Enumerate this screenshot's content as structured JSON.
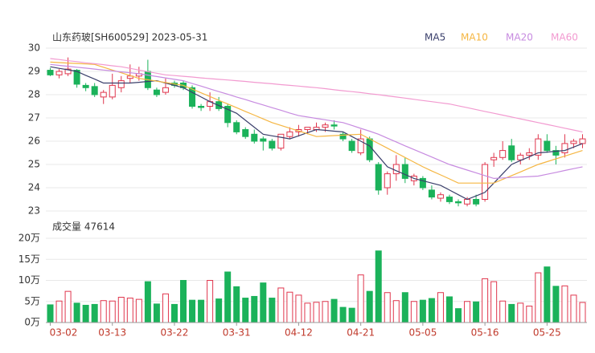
{
  "chart_data": [
    {
      "type": "candlestick",
      "title": "山东药玻[SH600529] 2023-05-31",
      "up_color": "#e0364d",
      "down_color": "#1bb25a",
      "ylim": [
        23,
        30
      ],
      "yticks": [
        23,
        24,
        25,
        26,
        27,
        28,
        29,
        30
      ],
      "grid": true,
      "open": [
        29.05,
        28.85,
        28.9,
        29.05,
        28.4,
        28.35,
        27.9,
        27.9,
        28.3,
        28.7,
        28.8,
        29.0,
        28.2,
        28.1,
        28.5,
        28.5,
        28.3,
        27.5,
        27.5,
        27.7,
        27.5,
        26.8,
        26.5,
        26.3,
        26.1,
        26.0,
        25.7,
        26.2,
        26.4,
        26.5,
        26.5,
        26.6,
        26.7,
        26.3,
        26.0,
        25.5,
        26.1,
        25.0,
        24.0,
        24.6,
        25.0,
        24.3,
        24.4,
        23.9,
        23.55,
        23.6,
        23.4,
        23.3,
        23.5,
        23.5,
        25.2,
        25.3,
        25.8,
        25.2,
        25.4,
        25.4,
        26.0,
        25.6,
        25.5,
        25.9,
        25.9
      ],
      "high": [
        29.15,
        29.1,
        29.6,
        29.1,
        28.5,
        28.5,
        28.2,
        28.9,
        28.8,
        29.3,
        29.2,
        29.5,
        28.3,
        28.7,
        28.6,
        28.6,
        28.4,
        27.6,
        28.1,
        27.9,
        27.6,
        26.9,
        26.6,
        26.5,
        26.2,
        26.1,
        26.3,
        26.6,
        26.7,
        26.6,
        26.8,
        26.8,
        26.9,
        26.4,
        26.1,
        26.5,
        26.2,
        25.1,
        24.7,
        25.4,
        25.3,
        24.6,
        24.5,
        24.1,
        23.8,
        23.7,
        23.5,
        23.6,
        23.7,
        25.1,
        25.5,
        26.0,
        26.1,
        25.5,
        25.7,
        26.3,
        26.3,
        25.8,
        26.3,
        26.1,
        26.3
      ],
      "low": [
        28.8,
        28.7,
        28.8,
        28.3,
        28.15,
        27.9,
        27.6,
        27.8,
        28.1,
        28.5,
        28.6,
        28.2,
        27.9,
        28.0,
        28.3,
        28.2,
        27.4,
        27.3,
        27.3,
        27.3,
        26.6,
        26.3,
        26.1,
        25.9,
        25.6,
        25.6,
        25.6,
        26.1,
        26.2,
        26.3,
        26.4,
        26.4,
        26.5,
        26.0,
        25.5,
        25.4,
        25.1,
        23.7,
        23.7,
        24.3,
        24.2,
        24.1,
        23.9,
        23.5,
        23.4,
        23.3,
        23.2,
        23.2,
        23.2,
        23.4,
        24.9,
        25.2,
        25.1,
        25.0,
        25.2,
        25.2,
        25.5,
        25.0,
        25.3,
        25.7,
        25.7
      ],
      "close": [
        28.85,
        29.0,
        29.1,
        28.45,
        28.3,
        28.0,
        28.1,
        28.4,
        28.6,
        28.8,
        28.9,
        28.3,
        28.0,
        28.3,
        28.4,
        28.3,
        27.5,
        27.45,
        27.7,
        27.4,
        26.8,
        26.4,
        26.2,
        26.0,
        26.0,
        25.7,
        26.3,
        26.4,
        26.5,
        26.6,
        26.6,
        26.7,
        26.65,
        26.1,
        25.6,
        26.1,
        25.2,
        23.9,
        24.6,
        25.0,
        24.4,
        24.5,
        24.0,
        23.6,
        23.7,
        23.4,
        23.35,
        23.5,
        23.3,
        25.0,
        25.3,
        25.6,
        25.2,
        25.4,
        25.5,
        26.1,
        25.6,
        25.4,
        25.9,
        26.0,
        26.1
      ],
      "series": [
        {
          "name": "MA5",
          "color": "#3a3f6b",
          "values": [
            29.2,
            29.13,
            29.07,
            29.0,
            28.83,
            28.67,
            28.5,
            28.5,
            28.5,
            28.5,
            28.53,
            28.57,
            28.6,
            28.5,
            28.4,
            28.3,
            28.1,
            27.9,
            27.7,
            27.53,
            27.37,
            27.2,
            26.9,
            26.6,
            26.3,
            26.23,
            26.17,
            26.1,
            26.23,
            26.37,
            26.5,
            26.47,
            26.43,
            26.4,
            26.2,
            26.0,
            25.8,
            25.35,
            24.9,
            24.73,
            24.57,
            24.4,
            24.3,
            24.2,
            24.1,
            23.9,
            23.7,
            23.5,
            23.65,
            23.8,
            24.2,
            24.6,
            25.0,
            25.17,
            25.33,
            25.5,
            25.53,
            25.57,
            25.6,
            25.75,
            25.9
          ]
        },
        {
          "name": "MA10",
          "color": "#f5b642",
          "values": [
            29.4,
            29.38,
            29.36,
            29.34,
            29.32,
            29.3,
            29.18,
            29.06,
            28.94,
            28.82,
            28.7,
            28.64,
            28.58,
            28.52,
            28.46,
            28.4,
            28.24,
            28.08,
            27.92,
            27.76,
            27.6,
            27.44,
            27.28,
            27.12,
            26.96,
            26.8,
            26.68,
            26.56,
            26.44,
            26.32,
            26.2,
            26.22,
            26.24,
            26.26,
            26.28,
            26.3,
            26.1,
            25.9,
            25.7,
            25.5,
            25.3,
            25.1,
            24.9,
            24.72,
            24.55,
            24.38,
            24.2,
            24.2,
            24.2,
            24.2,
            24.2,
            24.36,
            24.52,
            24.68,
            24.84,
            25.0,
            25.12,
            25.24,
            25.36,
            25.48,
            25.6
          ]
        },
        {
          "name": "MA20",
          "color": "#c78be0",
          "values": [
            29.3,
            29.26,
            29.22,
            29.18,
            29.14,
            29.1,
            29.06,
            29.02,
            28.98,
            28.94,
            28.9,
            28.84,
            28.78,
            28.72,
            28.66,
            28.6,
            28.48,
            28.37,
            28.25,
            28.13,
            28.02,
            27.9,
            27.79,
            27.67,
            27.56,
            27.44,
            27.33,
            27.21,
            27.1,
            27.04,
            26.98,
            26.92,
            26.86,
            26.8,
            26.68,
            26.55,
            26.43,
            26.3,
            26.13,
            25.97,
            25.8,
            25.64,
            25.48,
            25.32,
            25.16,
            25.0,
            24.88,
            24.76,
            24.64,
            24.52,
            24.4,
            24.42,
            24.44,
            24.46,
            24.48,
            24.5,
            24.58,
            24.66,
            24.74,
            24.82,
            24.9
          ]
        },
        {
          "name": "MA60",
          "color": "#f29ad0",
          "values": [
            29.55,
            29.51,
            29.46,
            29.42,
            29.37,
            29.33,
            29.29,
            29.24,
            29.2,
            29.13,
            29.06,
            28.99,
            28.92,
            28.85,
            28.82,
            28.79,
            28.76,
            28.72,
            28.69,
            28.66,
            28.63,
            28.6,
            28.57,
            28.53,
            28.5,
            28.47,
            28.43,
            28.4,
            28.37,
            28.33,
            28.3,
            28.26,
            28.21,
            28.17,
            28.13,
            28.09,
            28.04,
            28.0,
            27.95,
            27.9,
            27.85,
            27.8,
            27.75,
            27.7,
            27.65,
            27.6,
            27.52,
            27.44,
            27.36,
            27.28,
            27.2,
            27.12,
            27.04,
            26.96,
            26.88,
            26.8,
            26.72,
            26.64,
            26.56,
            26.48,
            26.4
          ]
        }
      ]
    },
    {
      "type": "bar",
      "title": "成交量 47614",
      "x_color": "#c0392b",
      "categories": [
        "03-02",
        null,
        null,
        null,
        null,
        null,
        null,
        "03-13",
        null,
        null,
        null,
        null,
        null,
        null,
        "03-22",
        null,
        null,
        null,
        null,
        null,
        null,
        "03-31",
        null,
        null,
        null,
        null,
        null,
        null,
        "04-12",
        null,
        null,
        null,
        null,
        null,
        null,
        "04-21",
        null,
        null,
        null,
        null,
        null,
        null,
        "05-05",
        null,
        null,
        null,
        null,
        null,
        null,
        "05-16",
        null,
        null,
        null,
        null,
        null,
        null,
        "05-25",
        null,
        null,
        null,
        null
      ],
      "values": [
        4.2,
        5.1,
        7.4,
        4.6,
        4.1,
        4.3,
        5.2,
        5.1,
        6.0,
        5.8,
        5.5,
        9.7,
        4.4,
        6.8,
        4.3,
        10.0,
        5.3,
        5.3,
        10.0,
        5.6,
        12.0,
        8.5,
        5.8,
        6.2,
        9.4,
        5.8,
        8.2,
        7.2,
        6.5,
        4.6,
        4.8,
        5.0,
        5.5,
        3.6,
        3.4,
        11.3,
        7.4,
        17.0,
        7.1,
        5.2,
        7.1,
        5.0,
        5.3,
        5.7,
        7.1,
        6.1,
        3.3,
        5.0,
        4.9,
        10.4,
        9.7,
        5.1,
        4.3,
        4.6,
        3.9,
        11.8,
        13.2,
        8.6,
        8.7,
        6.5,
        4.7614
      ],
      "ylim": [
        0,
        20
      ],
      "yticks": [
        {
          "value": 0,
          "label": "0万"
        },
        {
          "value": 5,
          "label": "5万"
        },
        {
          "value": 10,
          "label": "10万"
        },
        {
          "value": 15,
          "label": "15万"
        },
        {
          "value": 20,
          "label": "20万"
        }
      ],
      "grid": true
    }
  ]
}
